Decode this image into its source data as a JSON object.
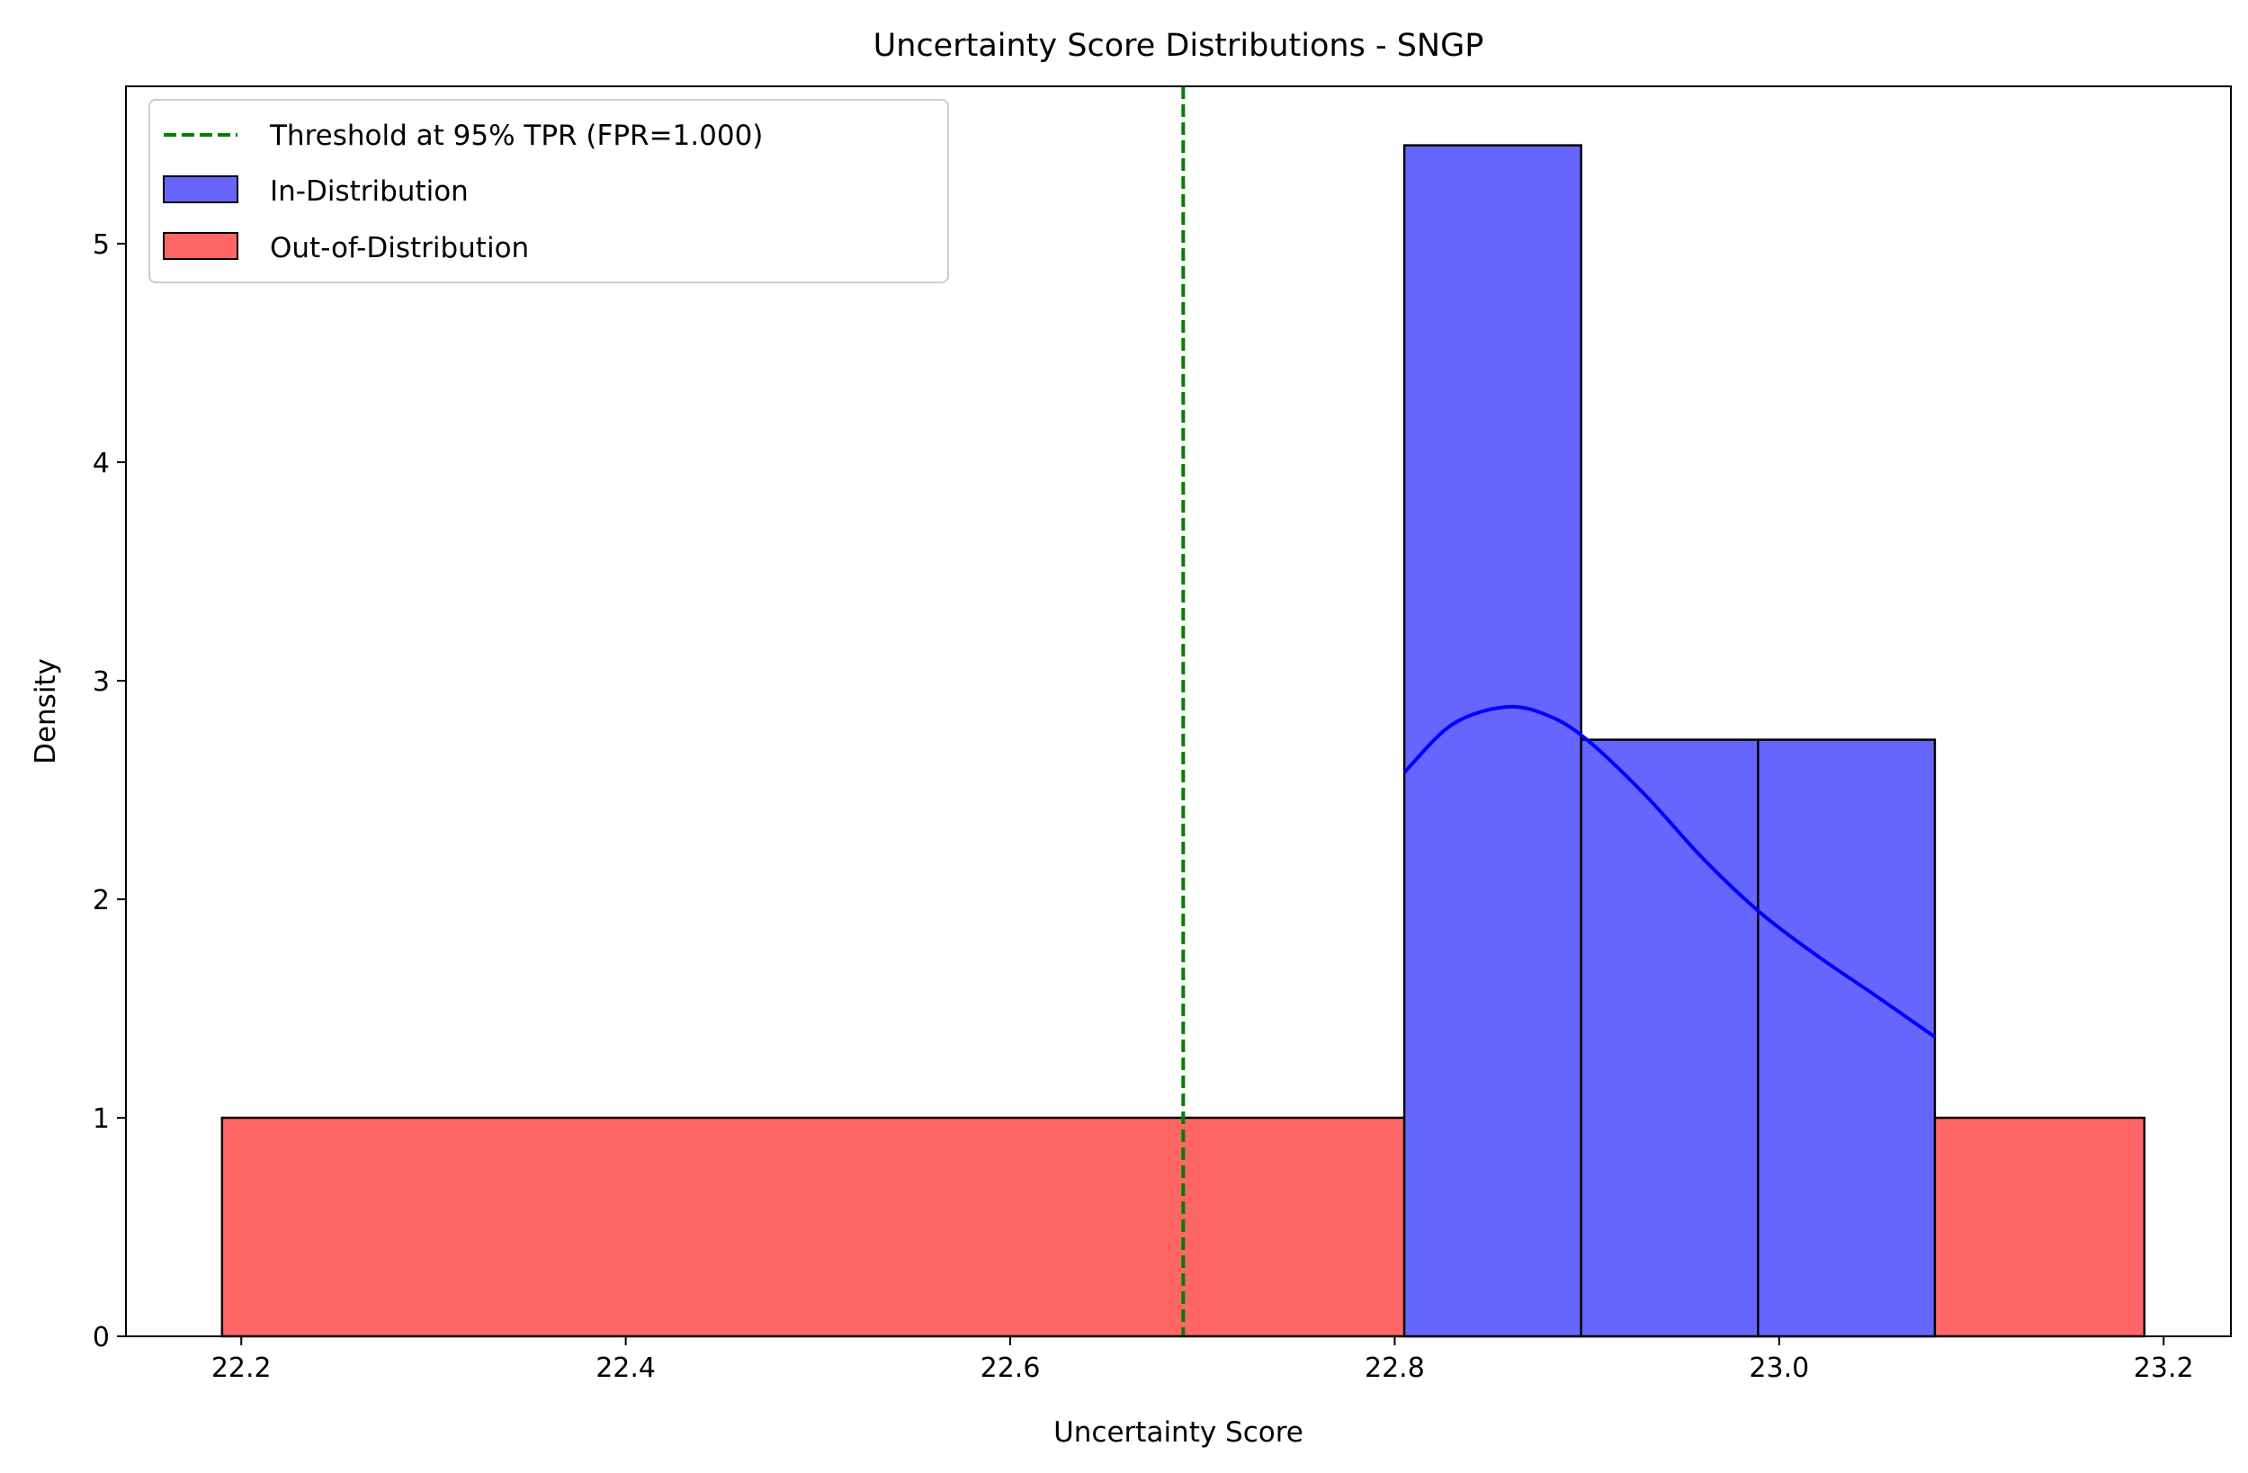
{
  "chart_data": {
    "type": "histogram",
    "title": "Uncertainty Score Distributions - SNGP",
    "xlabel": "Uncertainty Score",
    "ylabel": "Density",
    "xlim": [
      22.14,
      23.235
    ],
    "ylim": [
      0,
      5.72
    ],
    "xticks": [
      22.2,
      22.4,
      22.6,
      22.8,
      23.0,
      23.2
    ],
    "xtick_labels": [
      "22.2",
      "22.4",
      "22.6",
      "22.8",
      "23.0",
      "23.2"
    ],
    "yticks": [
      0,
      1,
      2,
      3,
      4,
      5
    ],
    "ytick_labels": [
      "0",
      "1",
      "2",
      "3",
      "4",
      "5"
    ],
    "grid": false,
    "legend_position": "top-left",
    "series": [
      {
        "name": "Out-of-Distribution",
        "kind": "histogram",
        "color": "#ff6666",
        "bins": [
          {
            "x0": 22.19,
            "x1": 23.19,
            "density": 1.0
          }
        ]
      },
      {
        "name": "In-Distribution",
        "kind": "histogram",
        "color": "#6666ff",
        "bins": [
          {
            "x0": 22.805,
            "x1": 22.897,
            "density": 5.45
          },
          {
            "x0": 22.897,
            "x1": 22.989,
            "density": 2.73
          },
          {
            "x0": 22.989,
            "x1": 23.081,
            "density": 2.73
          }
        ]
      }
    ],
    "kde": {
      "series": "In-Distribution",
      "color": "#0000ff",
      "points": [
        [
          22.805,
          2.58
        ],
        [
          22.83,
          2.8
        ],
        [
          22.858,
          2.88
        ],
        [
          22.88,
          2.84
        ],
        [
          22.9,
          2.73
        ],
        [
          22.93,
          2.48
        ],
        [
          22.96,
          2.19
        ],
        [
          22.99,
          1.94
        ],
        [
          23.02,
          1.74
        ],
        [
          23.05,
          1.56
        ],
        [
          23.081,
          1.37
        ]
      ]
    },
    "threshold": {
      "label": "Threshold at 95% TPR (FPR=1.000)",
      "x": 22.69,
      "color": "#008000"
    }
  }
}
